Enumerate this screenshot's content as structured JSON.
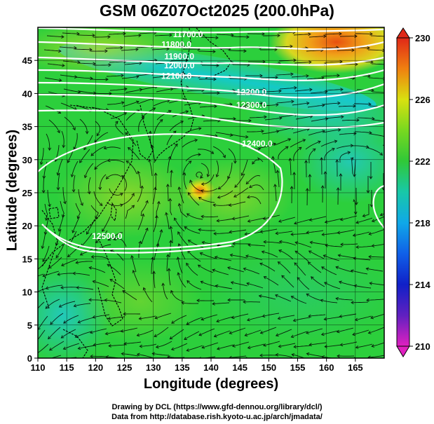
{
  "title": "GSM 06Z07Oct2025 (200.0hPa)",
  "xlabel": "Longitude (degrees)",
  "ylabel": "Latitude  (degrees)",
  "credit_line1": "Drawing by DCL (https://www.gfd-dennou.org/library/dcl/)",
  "credit_line2": "Data from http://database.rish.kyoto-u.ac.jp/arch/jmadata/",
  "colors": {
    "background_field": "#2ccf3c",
    "contour": "#ffffff",
    "grid": "#000000",
    "coast": "#000000"
  },
  "chart_data": {
    "type": "heatmap",
    "description_units": "temperature (K) with geopotential height contours and wind streamlines",
    "x_range": [
      110,
      170
    ],
    "y_range": [
      0,
      50
    ],
    "x_ticks": [
      "110",
      "115",
      "120",
      "125",
      "130",
      "135",
      "140",
      "145",
      "150",
      "155",
      "160",
      "165"
    ],
    "y_ticks": [
      "0",
      "5",
      "10",
      "15",
      "20",
      "25",
      "30",
      "35",
      "40",
      "45"
    ],
    "colorbar": {
      "min": 210,
      "max": 230,
      "ticks": [
        "210",
        "214",
        "218",
        "222",
        "226",
        "230"
      ]
    },
    "contour_labels": [
      {
        "text": "11700.0",
        "lon": 136,
        "lat": 48.5
      },
      {
        "text": "11800.0",
        "lon": 134,
        "lat": 47.0
      },
      {
        "text": "11900.0",
        "lon": 134.5,
        "lat": 45.2
      },
      {
        "text": "12000.0",
        "lon": 134.5,
        "lat": 43.8
      },
      {
        "text": "12100.0",
        "lon": 134,
        "lat": 42.2
      },
      {
        "text": "12200.0",
        "lon": 147,
        "lat": 39.8
      },
      {
        "text": "12300.0",
        "lon": 147,
        "lat": 37.8
      },
      {
        "text": "12400.0",
        "lon": 148,
        "lat": 32.0
      },
      {
        "text": "12500.0",
        "lon": 122,
        "lat": 18.0
      }
    ]
  }
}
